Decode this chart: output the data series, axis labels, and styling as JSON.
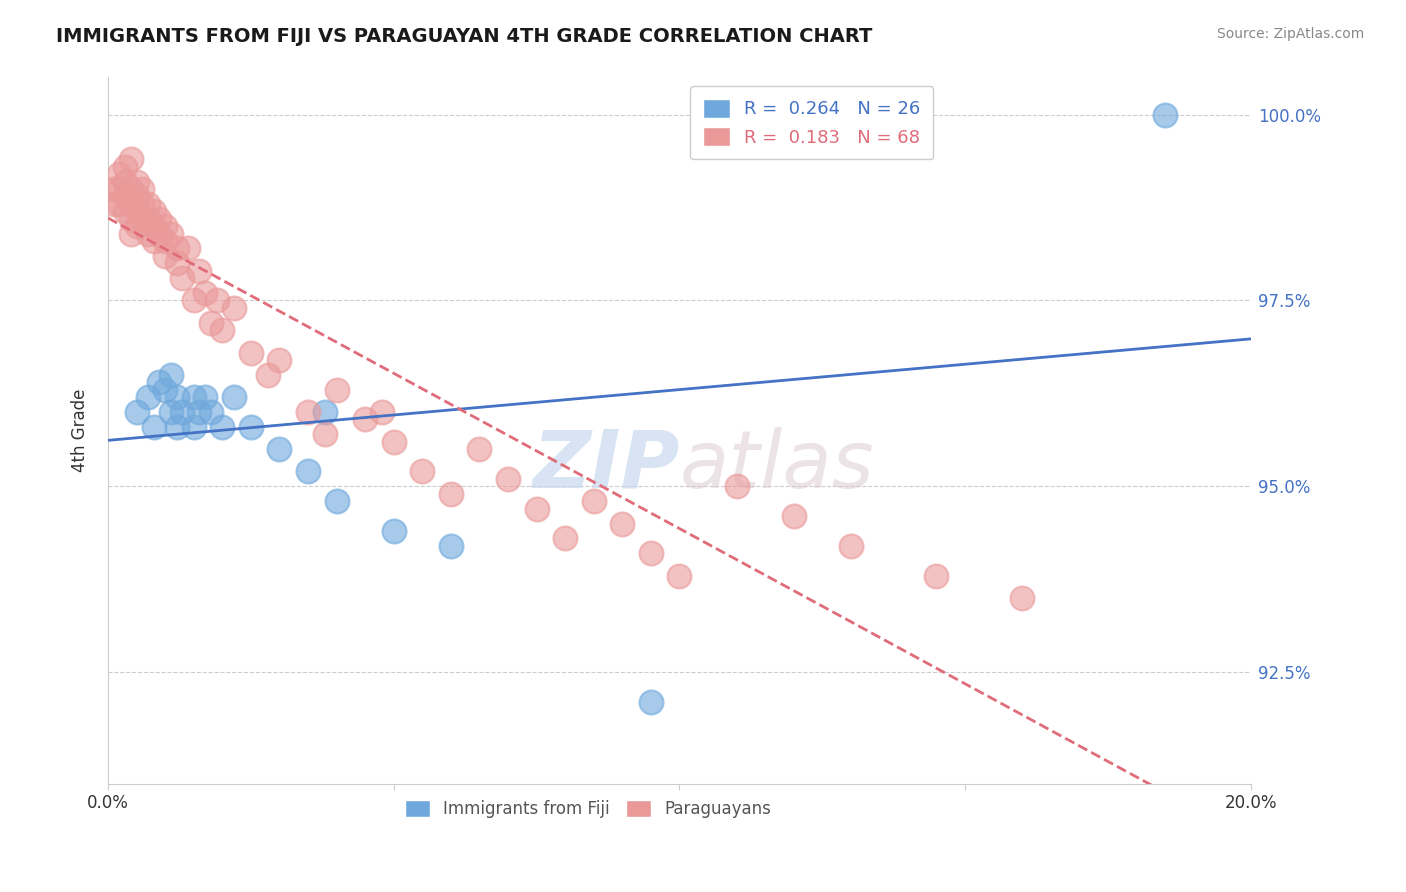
{
  "title": "IMMIGRANTS FROM FIJI VS PARAGUAYAN 4TH GRADE CORRELATION CHART",
  "source_text": "Source: ZipAtlas.com",
  "ylabel": "4th Grade",
  "ylabel_right_ticks": [
    "100.0%",
    "97.5%",
    "95.0%",
    "92.5%"
  ],
  "ylabel_right_values": [
    1.0,
    0.975,
    0.95,
    0.925
  ],
  "xmin": 0.0,
  "xmax": 0.2,
  "ymin": 0.91,
  "ymax": 1.005,
  "legend_blue_label": "R =  0.264   N = 26",
  "legend_pink_label": "R =  0.183   N = 68",
  "blue_color": "#6fa8dc",
  "pink_color": "#ea9999",
  "blue_line_color": "#4472c4",
  "pink_line_color": "#e06c7a",
  "watermark_zip": "ZIP",
  "watermark_atlas": "atlas",
  "fiji_points_x": [
    0.005,
    0.007,
    0.008,
    0.009,
    0.01,
    0.011,
    0.011,
    0.012,
    0.012,
    0.013,
    0.015,
    0.015,
    0.016,
    0.017,
    0.018,
    0.02,
    0.022,
    0.025,
    0.03,
    0.035,
    0.038,
    0.04,
    0.05,
    0.06,
    0.095,
    0.185
  ],
  "fiji_points_y": [
    0.96,
    0.962,
    0.958,
    0.964,
    0.963,
    0.96,
    0.965,
    0.958,
    0.962,
    0.96,
    0.958,
    0.962,
    0.96,
    0.962,
    0.96,
    0.958,
    0.962,
    0.958,
    0.955,
    0.952,
    0.96,
    0.948,
    0.944,
    0.942,
    0.921,
    1.0
  ],
  "paraguayan_points_x": [
    0.001,
    0.001,
    0.002,
    0.002,
    0.002,
    0.003,
    0.003,
    0.003,
    0.003,
    0.004,
    0.004,
    0.004,
    0.004,
    0.004,
    0.005,
    0.005,
    0.005,
    0.005,
    0.006,
    0.006,
    0.006,
    0.007,
    0.007,
    0.007,
    0.008,
    0.008,
    0.008,
    0.009,
    0.009,
    0.01,
    0.01,
    0.01,
    0.011,
    0.012,
    0.012,
    0.013,
    0.014,
    0.015,
    0.016,
    0.017,
    0.018,
    0.019,
    0.02,
    0.022,
    0.025,
    0.028,
    0.03,
    0.035,
    0.038,
    0.04,
    0.045,
    0.048,
    0.05,
    0.055,
    0.06,
    0.065,
    0.07,
    0.075,
    0.08,
    0.085,
    0.09,
    0.095,
    0.1,
    0.11,
    0.12,
    0.13,
    0.145,
    0.16
  ],
  "paraguayan_points_y": [
    0.99,
    0.988,
    0.992,
    0.99,
    0.988,
    0.993,
    0.991,
    0.989,
    0.987,
    0.994,
    0.99,
    0.988,
    0.986,
    0.984,
    0.991,
    0.989,
    0.987,
    0.985,
    0.99,
    0.988,
    0.986,
    0.988,
    0.986,
    0.984,
    0.987,
    0.985,
    0.983,
    0.986,
    0.984,
    0.985,
    0.983,
    0.981,
    0.984,
    0.98,
    0.982,
    0.978,
    0.982,
    0.975,
    0.979,
    0.976,
    0.972,
    0.975,
    0.971,
    0.974,
    0.968,
    0.965,
    0.967,
    0.96,
    0.957,
    0.963,
    0.959,
    0.96,
    0.956,
    0.952,
    0.949,
    0.955,
    0.951,
    0.947,
    0.943,
    0.948,
    0.945,
    0.941,
    0.938,
    0.95,
    0.946,
    0.942,
    0.938,
    0.935
  ]
}
